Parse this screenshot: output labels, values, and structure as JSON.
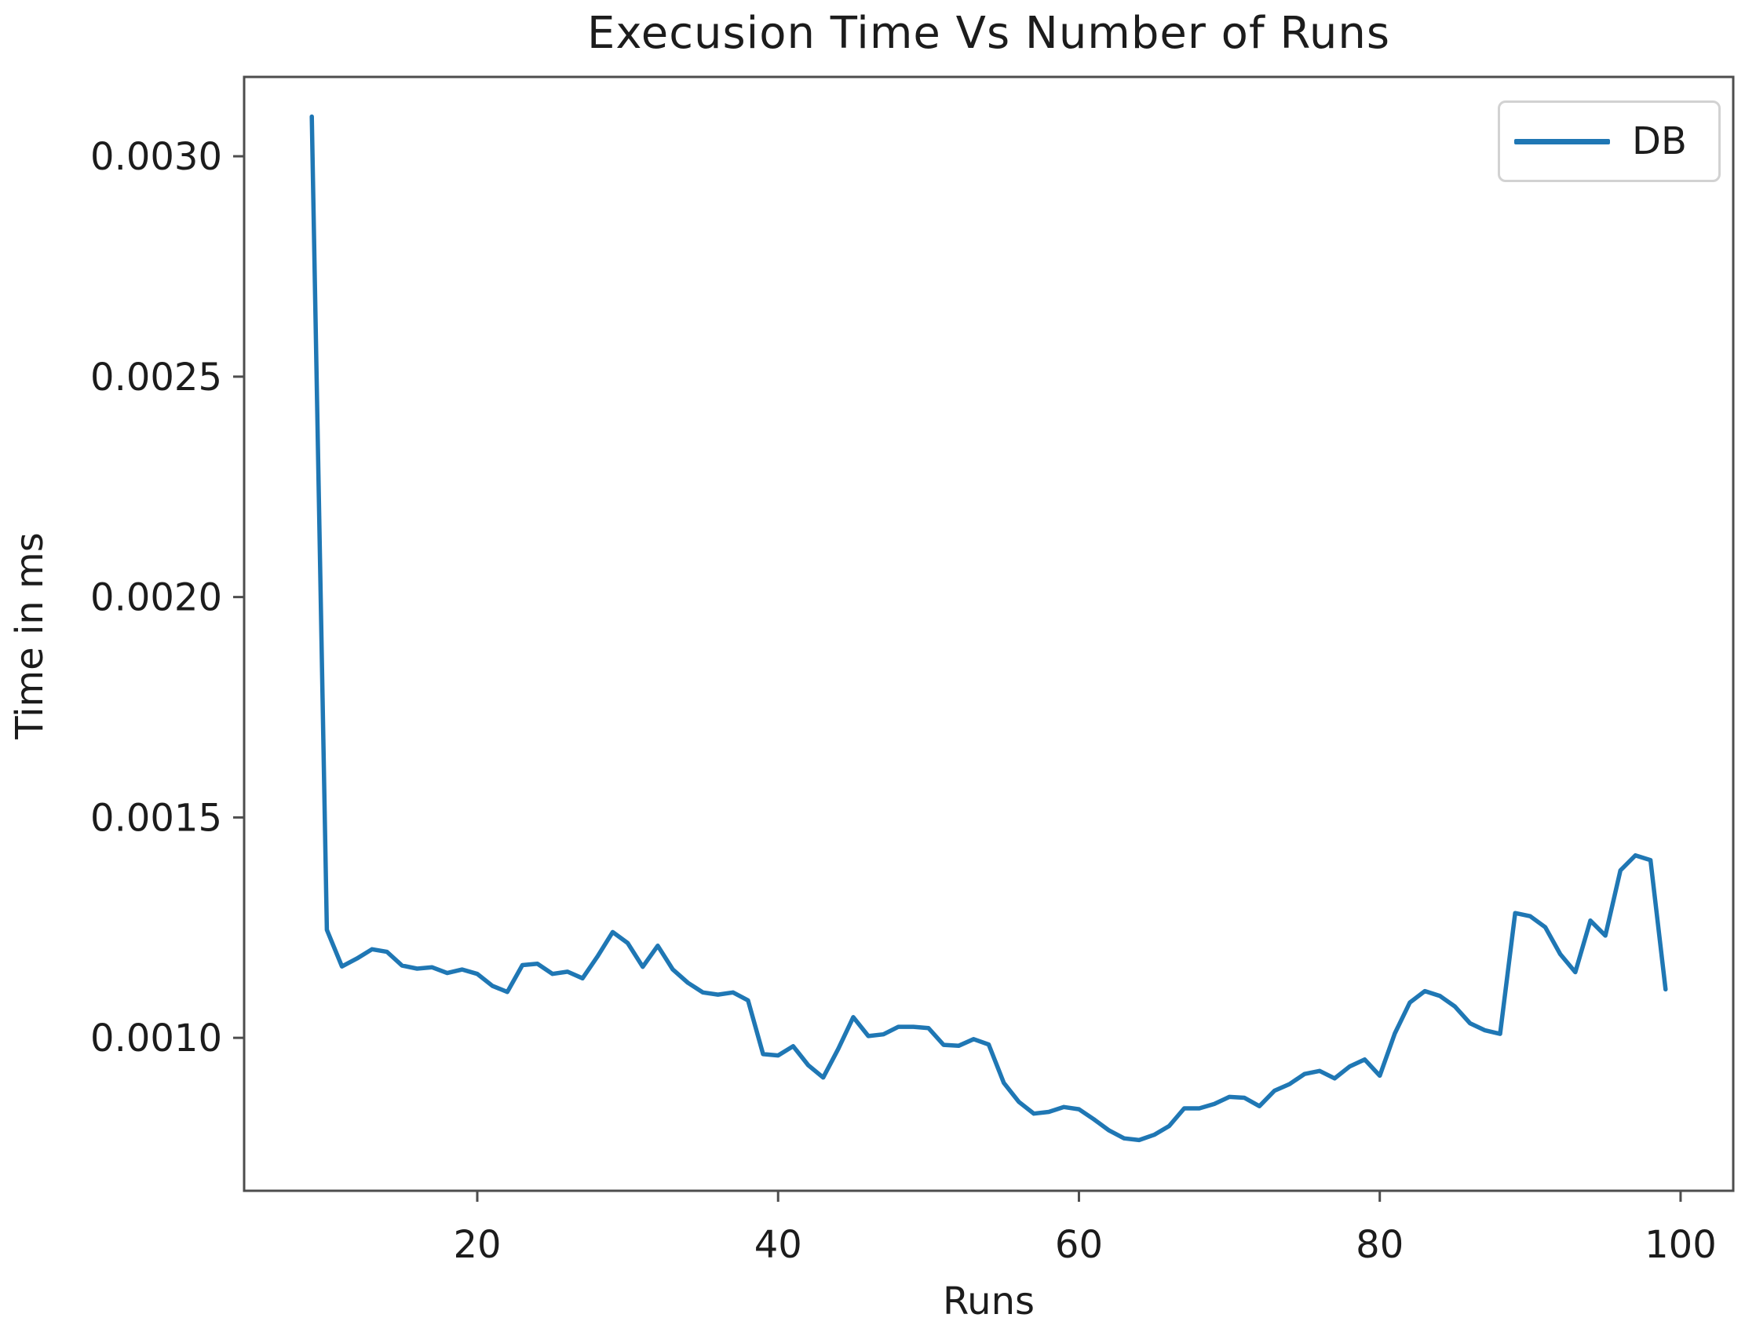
{
  "title": "Execusion Time Vs Number of Runs",
  "legend": {
    "label": "DB",
    "line_color": "#1f77b4"
  },
  "chart_data": {
    "type": "line",
    "title": "Execusion Time Vs Number of Runs",
    "xlabel": "Runs",
    "ylabel": "Time in ms",
    "grid": false,
    "legend_position": "upper right",
    "xlim": [
      4.5,
      103.5
    ],
    "ylim": [
      0.000653,
      0.00318
    ],
    "x_ticks": {
      "values": [
        20,
        40,
        60,
        80,
        100
      ],
      "labels": [
        "20",
        "40",
        "60",
        "80",
        "100"
      ]
    },
    "y_ticks": {
      "values": [
        0.001,
        0.0015,
        0.002,
        0.0025,
        0.003
      ],
      "labels": [
        "0.0010",
        "0.0015",
        "0.0020",
        "0.0025",
        "0.0030"
      ]
    },
    "series": [
      {
        "name": "DB",
        "color": "#1f77b4",
        "x": [
          9,
          10,
          11,
          12,
          13,
          14,
          15,
          16,
          17,
          18,
          19,
          20,
          21,
          22,
          23,
          24,
          25,
          26,
          27,
          28,
          29,
          30,
          31,
          32,
          33,
          34,
          35,
          36,
          37,
          38,
          39,
          40,
          41,
          42,
          43,
          44,
          45,
          46,
          47,
          48,
          49,
          50,
          51,
          52,
          53,
          54,
          55,
          56,
          57,
          58,
          59,
          60,
          61,
          62,
          63,
          64,
          65,
          66,
          67,
          68,
          69,
          70,
          71,
          72,
          73,
          74,
          75,
          76,
          77,
          78,
          79,
          80,
          81,
          82,
          83,
          84,
          85,
          86,
          87,
          88,
          89,
          90,
          91,
          92,
          93,
          94,
          95,
          96,
          97,
          98,
          99
        ],
        "y": [
          0.00309,
          0.001245,
          0.001162,
          0.00118,
          0.001201,
          0.001195,
          0.001164,
          0.001157,
          0.00116,
          0.001147,
          0.001155,
          0.001145,
          0.001118,
          0.001104,
          0.001165,
          0.001168,
          0.001145,
          0.00115,
          0.001135,
          0.001185,
          0.00124,
          0.001215,
          0.001161,
          0.001209,
          0.001155,
          0.001125,
          0.001103,
          0.001098,
          0.001103,
          0.001085,
          0.000963,
          0.00096,
          0.000981,
          0.000938,
          0.00091,
          0.000975,
          0.001047,
          0.001004,
          0.001008,
          0.001025,
          0.001025,
          0.001022,
          0.000984,
          0.000982,
          0.000997,
          0.000985,
          0.000898,
          0.000855,
          0.000828,
          0.000832,
          0.000843,
          0.000838,
          0.000815,
          0.00079,
          0.000772,
          0.000768,
          0.00078,
          0.0008,
          0.00084,
          0.00084,
          0.00085,
          0.000866,
          0.000864,
          0.000845,
          0.00088,
          0.000895,
          0.000918,
          0.000925,
          0.000908,
          0.000935,
          0.000951,
          0.000914,
          0.00101,
          0.00108,
          0.001106,
          0.001095,
          0.001071,
          0.001033,
          0.001017,
          0.001009,
          0.001283,
          0.001276,
          0.001251,
          0.00119,
          0.001149,
          0.001266,
          0.001232,
          0.00138,
          0.001414,
          0.001403,
          0.00111
        ]
      }
    ]
  }
}
